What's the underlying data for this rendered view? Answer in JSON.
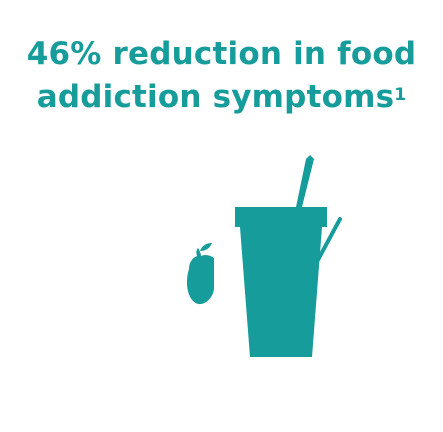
{
  "headline": {
    "line1": "46% reduction in food",
    "line2": "addiction symptoms",
    "footnote": "1",
    "color": "#169c9a"
  },
  "illustration": {
    "icons": [
      "apple-icon",
      "smoothie-cup-icon",
      "checkmark-icon"
    ],
    "color": "#169c9a"
  }
}
